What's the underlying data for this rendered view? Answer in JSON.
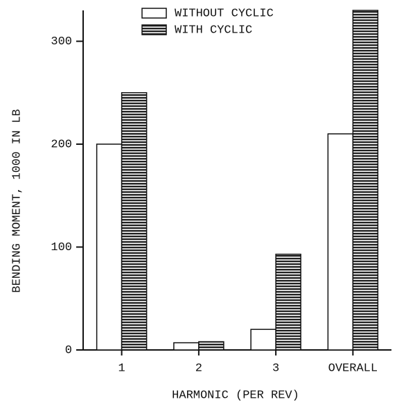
{
  "chart_data": {
    "type": "bar",
    "x_label": "HARMONIC (PER REV)",
    "y_label": "BENDING MOMENT, 1000 IN LB",
    "categories": [
      "1",
      "2",
      "3",
      "OVERALL"
    ],
    "series": [
      {
        "name": "WITHOUT CYCLIC",
        "color": "#ffffff",
        "values": [
          200,
          7,
          20,
          210
        ]
      },
      {
        "name": "WITH CYCLIC",
        "color": "hatch",
        "values": [
          250,
          8,
          93,
          330
        ]
      }
    ],
    "ylim": [
      0,
      330
    ],
    "yticks": [
      0,
      100,
      200,
      300
    ],
    "legend": "top"
  }
}
